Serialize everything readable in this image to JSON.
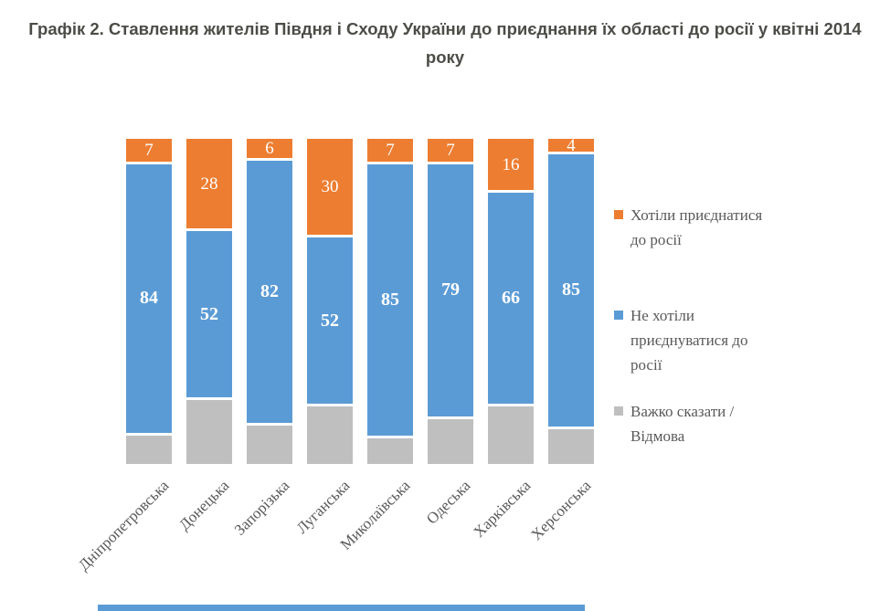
{
  "title": "Графік 2. Ставлення жителів Півдня і Сходу України до приєднання їх області до росії у квітні 2014 року",
  "colors": {
    "want_join": "#ED7D31",
    "not_want_join": "#5B9BD5",
    "hard_to_say": "#BFBFBF",
    "value_label": "#ffffff",
    "axis_text": "#595959",
    "title_text": "#4C4C47"
  },
  "chart_data": {
    "type": "bar",
    "subtype": "100%-stacked-vertical",
    "title": "Графік 2. Ставлення жителів Півдня і Сходу України до приєднання їх області до росії у квітні 2014 року",
    "categories": [
      "Дніпропетровська",
      "Донецька",
      "Запорізька",
      "Луганська",
      "Миколаївська",
      "Одеська",
      "Харківська",
      "Херсонська"
    ],
    "series": [
      {
        "name": "Хотіли приєднатися до росії",
        "color": "#ED7D31",
        "values": [
          7,
          28,
          6,
          30,
          7,
          7,
          16,
          4
        ],
        "data_labels_visible": true,
        "label_bold": false
      },
      {
        "name": "Не хотіли приєднуватися до росії",
        "color": "#5B9BD5",
        "values": [
          84,
          52,
          82,
          52,
          85,
          79,
          66,
          85
        ],
        "data_labels_visible": true,
        "label_bold": true
      },
      {
        "name": "Важко сказати / Відмова",
        "color": "#BFBFBF",
        "values": [
          9,
          20,
          12,
          18,
          8,
          14,
          18,
          11
        ],
        "data_labels_visible": false,
        "label_bold": false
      }
    ],
    "stack_order_top_to_bottom": [
      "Хотіли приєднатися до росії",
      "Не хотіли приєднуватися до росії",
      "Важко сказати / Відмова"
    ],
    "ylim": [
      0,
      100
    ],
    "grid": false,
    "axes_visible": false,
    "legend_position": "right",
    "x_tick_rotation_deg": 45
  }
}
